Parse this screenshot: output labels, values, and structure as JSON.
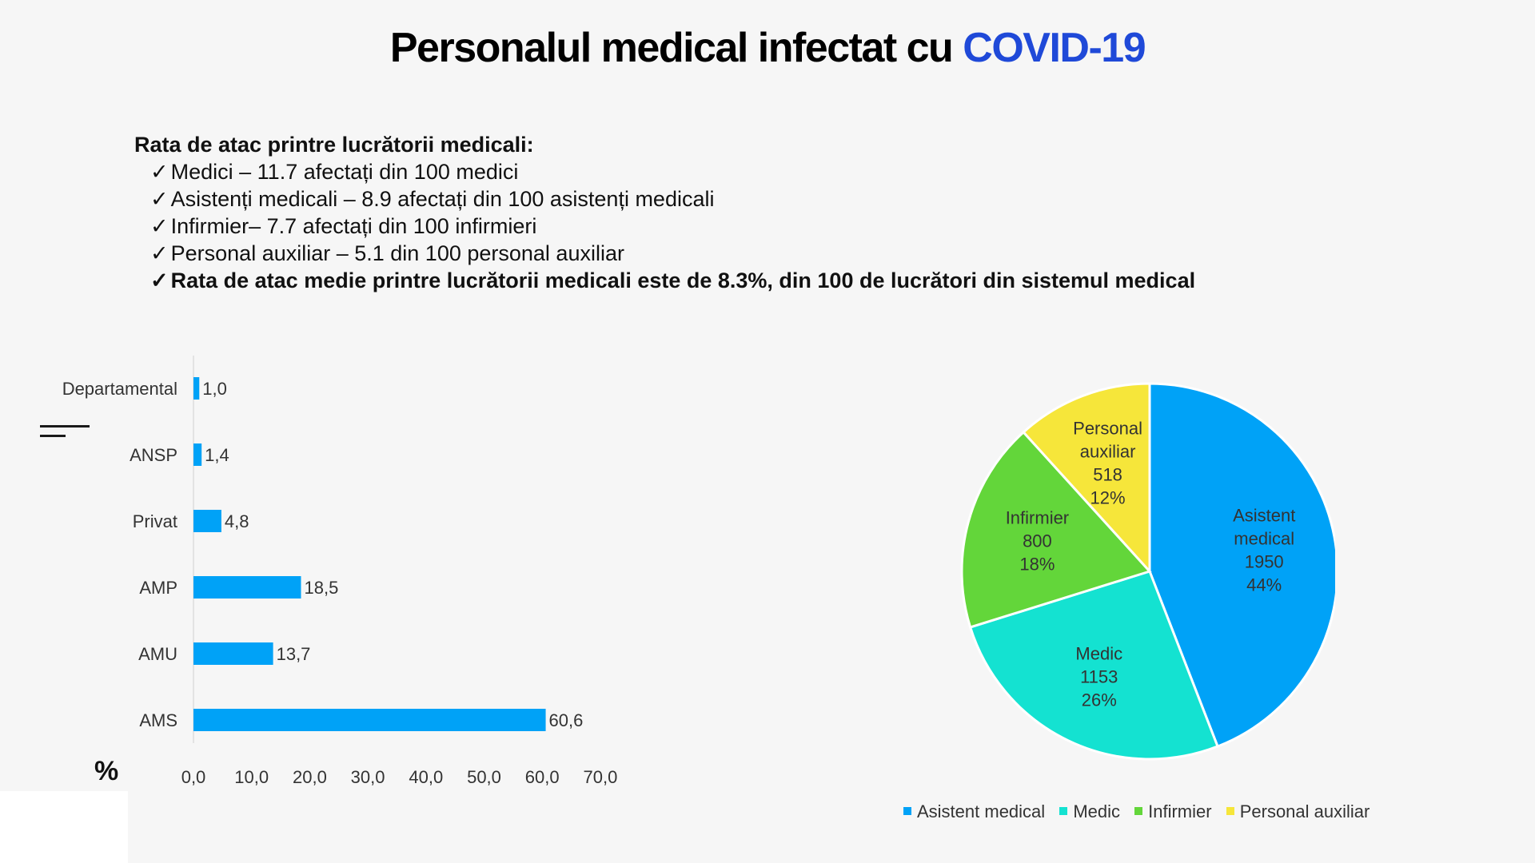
{
  "title": {
    "main": "Personalul medical infectat cu ",
    "highlight": "COVID-19"
  },
  "intro": {
    "heading": "Rata de atac printre lucrătorii medicali:",
    "items": [
      "Medici – 11.7 afectați din 100 medici",
      "Asistenți medicali – 8.9 afectați din 100 asistenți medicali",
      "Infirmier– 7.7 afectați din 100 infirmieri",
      "Personal auxiliar – 5.1 din 100 personal auxiliar",
      "Rata de atac medie printre lucrătorii medicali este de 8.3%,  din 100 de lucrători din sistemul medical"
    ],
    "check_mark": "✓"
  },
  "unit_label": "%",
  "colors": {
    "title_highlight": "#1f49d8",
    "bar": "#00a2f7",
    "pie": [
      "#00a2f7",
      "#14e2d1",
      "#63d63a",
      "#f6e63a"
    ]
  },
  "chart_data": [
    {
      "type": "bar",
      "orientation": "horizontal",
      "categories": [
        "Departamental",
        "ANSP",
        "Privat",
        "AMP",
        "AMU",
        "AMS"
      ],
      "values": [
        1.0,
        1.4,
        4.8,
        18.5,
        13.7,
        60.6
      ],
      "value_labels": [
        "1,0",
        "1,4",
        "4,8",
        "18,5",
        "13,7",
        "60,6"
      ],
      "xlim": [
        0,
        70
      ],
      "xticks": [
        "0,0",
        "10,0",
        "20,0",
        "30,0",
        "40,0",
        "50,0",
        "60,0",
        "70,0"
      ],
      "xlabel": "%",
      "grid": false
    },
    {
      "type": "pie",
      "slices": [
        {
          "name": "Asistent medical",
          "label_lines": [
            "Asistent",
            "medical",
            "1950",
            "44%"
          ],
          "value": 1950,
          "percent": 44
        },
        {
          "name": "Medic",
          "label_lines": [
            "Medic",
            "1153",
            "26%"
          ],
          "value": 1153,
          "percent": 26
        },
        {
          "name": "Infirmier",
          "label_lines": [
            "Infirmier",
            "800",
            "18%"
          ],
          "value": 800,
          "percent": 18
        },
        {
          "name": "Personal auxiliar",
          "label_lines": [
            "Personal",
            "auxiliar",
            "518",
            "12%"
          ],
          "value": 518,
          "percent": 12
        }
      ],
      "legend_position": "bottom"
    }
  ],
  "legend": [
    "Asistent medical",
    "Medic",
    "Infirmier",
    "Personal auxiliar"
  ]
}
